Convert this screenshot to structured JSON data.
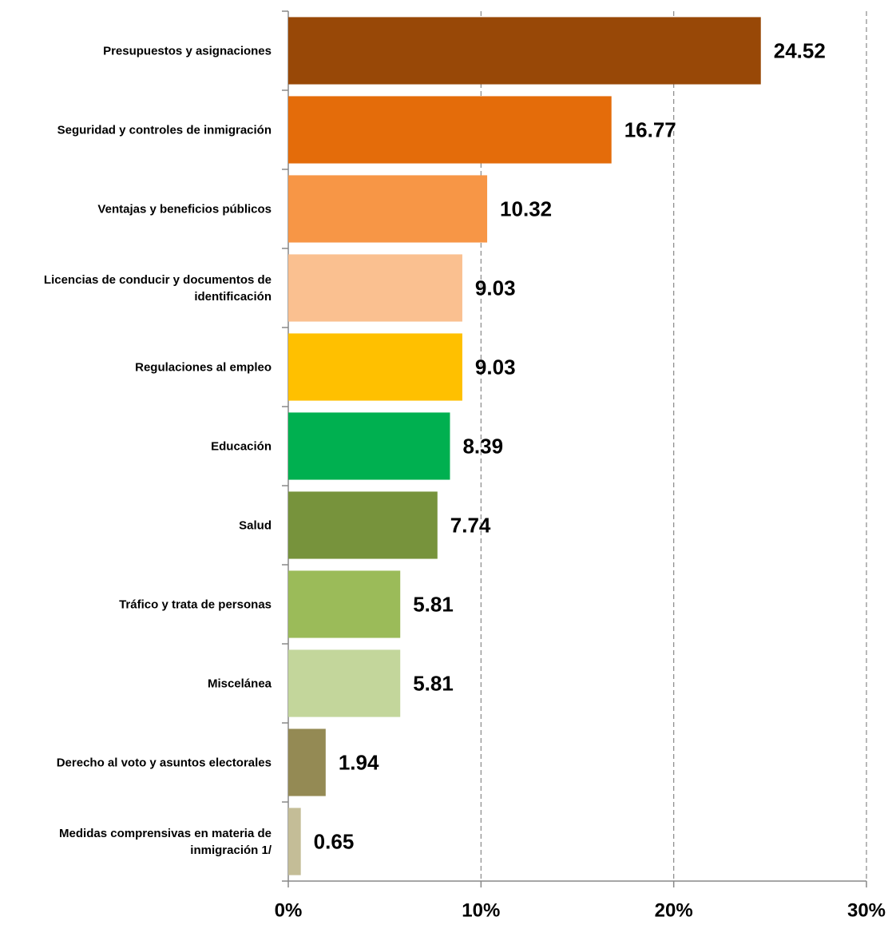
{
  "chart_data": {
    "type": "bar",
    "orientation": "horizontal",
    "categories": [
      "Presupuestos y asignaciones",
      "Seguridad y controles de inmigración",
      "Ventajas y beneficios públicos",
      "Licencias de conducir y documentos de identificación",
      "Regulaciones al empleo",
      "Educación",
      "Salud",
      "Tráfico y trata de personas",
      "Miscelánea",
      "Derecho al voto y asuntos electorales",
      "Medidas comprensivas en materia de inmigración 1/"
    ],
    "values": [
      24.52,
      16.77,
      10.32,
      9.03,
      9.03,
      8.39,
      7.74,
      5.81,
      5.81,
      1.94,
      0.65
    ],
    "colors": [
      "#984807",
      "#e46c0a",
      "#f79646",
      "#fac090",
      "#ffc000",
      "#00b050",
      "#77933c",
      "#9bbb59",
      "#c3d69b",
      "#948a54",
      "#c4bd97"
    ],
    "xlim": [
      0,
      30
    ],
    "xticks": [
      {
        "value": 0,
        "label": "0%"
      },
      {
        "value": 10,
        "label": "10%"
      },
      {
        "value": 20,
        "label": "20%"
      },
      {
        "value": 30,
        "label": "30%"
      }
    ],
    "grid": true
  }
}
